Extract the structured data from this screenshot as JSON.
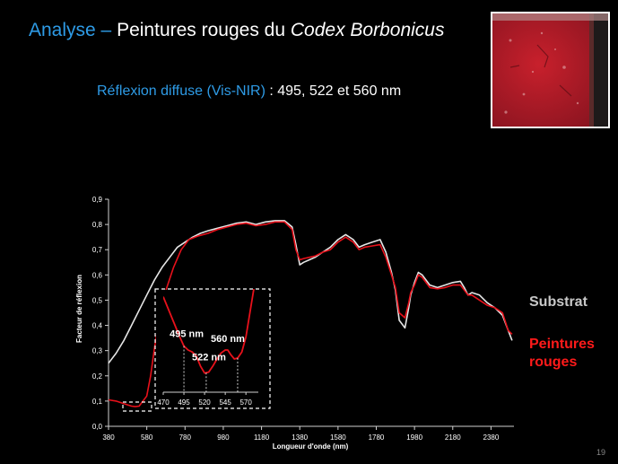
{
  "slide": {
    "title_prefix": "Analyse",
    "title_dash": " – ",
    "title_text": "Peintures rouges du ",
    "title_italic": "Codex Borbonicus",
    "subtitle_accent": "Réflexion diffuse (Vis-NIR)",
    "subtitle_rest": " : 495, 522 et 560 nm",
    "page_number": "19"
  },
  "colors": {
    "accent": "#2e9be6",
    "substrat": "#e6e6e6",
    "peintures": "#e8111b"
  },
  "chart_data": {
    "type": "line",
    "xlabel": "Longueur d'onde (nm)",
    "ylabel": "Facteur de réflexion",
    "xlim": [
      380,
      2500
    ],
    "ylim": [
      0,
      0.9
    ],
    "xticks": [
      380,
      580,
      780,
      980,
      1180,
      1380,
      1580,
      1780,
      1980,
      2180,
      2380
    ],
    "yticks": [
      0,
      0.1,
      0.2,
      0.3,
      0.4,
      0.5,
      0.6,
      0.7,
      0.8,
      0.9
    ],
    "ytick_labels": [
      "0,0",
      "0,1",
      "0,2",
      "0,3",
      "0,4",
      "0,5",
      "0,6",
      "0,7",
      "0,8",
      "0,9"
    ],
    "grid": false,
    "legend_position": "right",
    "series": [
      {
        "name": "Substrat",
        "color": "#e6e6e6",
        "x": [
          380,
          420,
          460,
          500,
          540,
          580,
          620,
          660,
          700,
          740,
          780,
          820,
          860,
          900,
          950,
          1000,
          1050,
          1100,
          1150,
          1200,
          1250,
          1300,
          1340,
          1360,
          1380,
          1400,
          1430,
          1460,
          1500,
          1540,
          1580,
          1620,
          1660,
          1690,
          1720,
          1760,
          1800,
          1830,
          1860,
          1880,
          1900,
          1930,
          1950,
          1960,
          1980,
          2000,
          2020,
          2060,
          2100,
          2140,
          2180,
          2220,
          2240,
          2260,
          2280,
          2320,
          2360,
          2400,
          2440,
          2470,
          2490
        ],
        "y": [
          0.25,
          0.29,
          0.34,
          0.4,
          0.46,
          0.52,
          0.58,
          0.63,
          0.67,
          0.71,
          0.73,
          0.75,
          0.765,
          0.775,
          0.785,
          0.795,
          0.805,
          0.81,
          0.8,
          0.81,
          0.815,
          0.815,
          0.79,
          0.72,
          0.64,
          0.65,
          0.66,
          0.67,
          0.69,
          0.71,
          0.74,
          0.76,
          0.74,
          0.71,
          0.72,
          0.73,
          0.74,
          0.69,
          0.61,
          0.54,
          0.42,
          0.39,
          0.47,
          0.52,
          0.57,
          0.61,
          0.6,
          0.56,
          0.55,
          0.56,
          0.57,
          0.575,
          0.55,
          0.52,
          0.53,
          0.52,
          0.49,
          0.47,
          0.44,
          0.38,
          0.34
        ]
      },
      {
        "name": "Peintures rouges",
        "color": "#e8111b",
        "x": [
          380,
          420,
          460,
          480,
          500,
          520,
          540,
          560,
          580,
          600,
          620,
          640,
          680,
          720,
          760,
          800,
          850,
          900,
          950,
          1000,
          1050,
          1100,
          1150,
          1200,
          1250,
          1300,
          1340,
          1360,
          1380,
          1400,
          1430,
          1460,
          1500,
          1540,
          1580,
          1620,
          1660,
          1690,
          1720,
          1760,
          1800,
          1830,
          1860,
          1880,
          1900,
          1930,
          1950,
          1960,
          1980,
          2000,
          2020,
          2060,
          2100,
          2140,
          2180,
          2220,
          2240,
          2260,
          2280,
          2320,
          2360,
          2400,
          2440,
          2470,
          2490
        ],
        "y": [
          0.105,
          0.1,
          0.09,
          0.085,
          0.08,
          0.078,
          0.08,
          0.1,
          0.12,
          0.2,
          0.31,
          0.4,
          0.54,
          0.63,
          0.7,
          0.74,
          0.755,
          0.765,
          0.78,
          0.79,
          0.8,
          0.805,
          0.795,
          0.8,
          0.81,
          0.81,
          0.78,
          0.7,
          0.66,
          0.665,
          0.67,
          0.675,
          0.69,
          0.7,
          0.73,
          0.75,
          0.73,
          0.7,
          0.71,
          0.715,
          0.72,
          0.67,
          0.6,
          0.55,
          0.45,
          0.43,
          0.49,
          0.53,
          0.56,
          0.6,
          0.59,
          0.55,
          0.545,
          0.55,
          0.56,
          0.56,
          0.54,
          0.52,
          0.52,
          0.5,
          0.48,
          0.47,
          0.45,
          0.38,
          0.365
        ]
      }
    ],
    "inset": {
      "type": "line",
      "xticks": [
        470,
        495,
        520,
        545,
        570
      ],
      "xlim": [
        470,
        585
      ],
      "ylim": [
        0,
        1
      ],
      "series": [
        {
          "name": "Peintures rouges",
          "x": [
            470,
            480,
            490,
            495,
            500,
            505,
            510,
            515,
            520,
            525,
            530,
            535,
            540,
            545,
            548,
            552,
            556,
            560,
            565,
            570,
            575,
            580
          ],
          "y": [
            0.95,
            0.75,
            0.55,
            0.46,
            0.42,
            0.4,
            0.36,
            0.26,
            0.19,
            0.2,
            0.26,
            0.33,
            0.39,
            0.42,
            0.42,
            0.37,
            0.33,
            0.34,
            0.4,
            0.55,
            0.8,
            1.05
          ]
        }
      ],
      "markers": [
        {
          "x": 495,
          "label": "495 nm"
        },
        {
          "x": 522,
          "label": "522 nm"
        },
        {
          "x": 560,
          "label": "560 nm"
        }
      ]
    }
  }
}
